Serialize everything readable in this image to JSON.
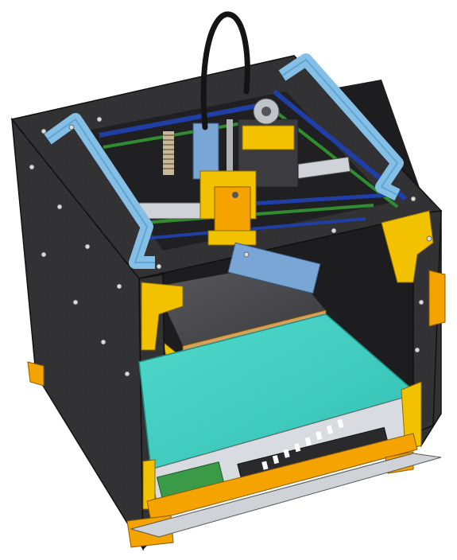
{
  "scene": {
    "colors": {
      "background": "#ffffff",
      "carbon_panel": "#2b2b2d",
      "carbon_weave": "#3a3a3d",
      "frame_yellow": "#f2c200",
      "frame_orange": "#f5a300",
      "handle_blue": "#86bfe6",
      "rail_blue": "#1f3fa6",
      "rail_green": "#2f8d2f",
      "build_plate_teal": "#3fcfc2",
      "heatbed_gray": "#4a4a4e",
      "cable_black": "#141414",
      "pcb_green": "#3a9a47",
      "aluminum": "#cfd3d8"
    }
  }
}
